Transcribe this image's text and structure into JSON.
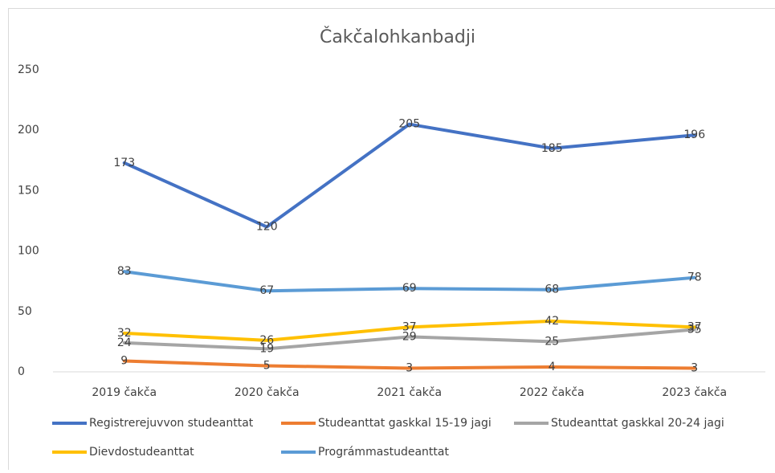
{
  "chart_data": {
    "type": "line",
    "title": "Čakčalohkanbadji",
    "categories": [
      "2019 čakča",
      "2020 čakča",
      "2021 čakča",
      "2022 čakča",
      "2023 čakča"
    ],
    "series": [
      {
        "name": "Registrerejuvvon studeanttat",
        "color": "#4472c4",
        "values": [
          173,
          120,
          205,
          185,
          196
        ]
      },
      {
        "name": "Studeanttat gaskkal 15-19 jagi",
        "color": "#ed7d31",
        "values": [
          9,
          5,
          3,
          4,
          3
        ]
      },
      {
        "name": "Studeanttat gaskkal 20-24 jagi",
        "color": "#a5a5a5",
        "values": [
          24,
          19,
          29,
          25,
          35
        ]
      },
      {
        "name": "Dievdostudeanttat",
        "color": "#ffc000",
        "values": [
          32,
          26,
          37,
          42,
          37
        ]
      },
      {
        "name": "Prográmmastudeanttat",
        "color": "#5b9bd5",
        "values": [
          83,
          67,
          69,
          68,
          78
        ]
      }
    ],
    "ylim": [
      0,
      250
    ],
    "yticks": [
      0,
      50,
      100,
      150,
      200,
      250
    ],
    "grid": false,
    "legend": "bottom"
  }
}
